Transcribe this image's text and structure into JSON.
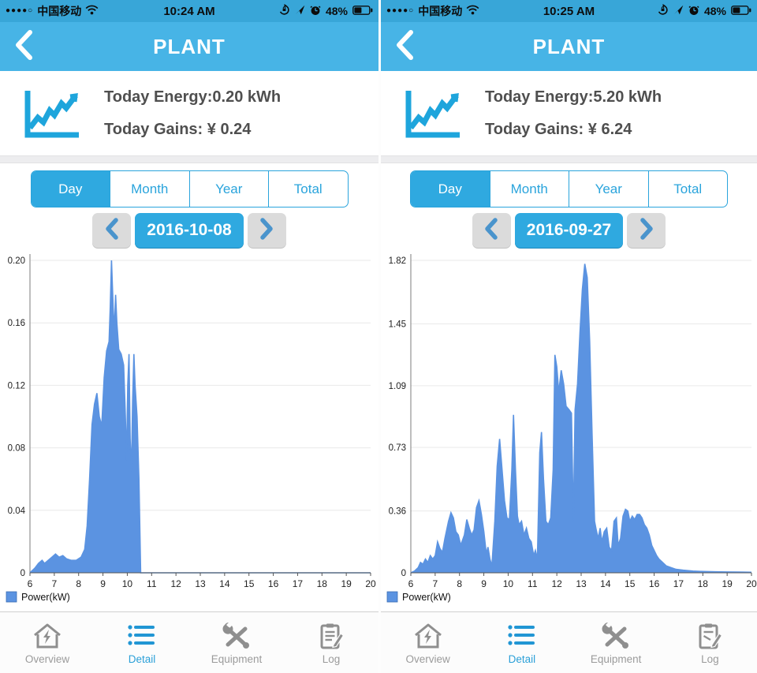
{
  "colors": {
    "status_bar_blue": "#38a6d8",
    "header_blue": "#47b4e6",
    "tab_border_blue": "#2aa4dc",
    "active_blue": "#2fa9e0",
    "chart_fill_blue": "#5b93e1",
    "nav_active_blue": "#2ba0d8",
    "nav_inactive_gray": "#8f8f8f",
    "summary_text_gray": "#4f4f4f",
    "grid_gray": "#e9e9e9"
  },
  "icons": {
    "back": "chevron-left",
    "signal": "cell-dots",
    "wifi": "wifi-arcs",
    "orientation_lock": "lock-circle",
    "location": "location-arrow",
    "alarm": "alarm-clock",
    "battery": "battery-half",
    "summary": "line-chart",
    "prev": "chevron-left",
    "next": "chevron-right",
    "overview": "house-energy",
    "detail": "bullet-list",
    "equipment": "crossed-tools",
    "log": "clipboard-pencil"
  },
  "tabs": {
    "items": [
      {
        "label": "Day",
        "active": true
      },
      {
        "label": "Month",
        "active": false
      },
      {
        "label": "Year",
        "active": false
      },
      {
        "label": "Total",
        "active": false
      }
    ]
  },
  "bottom_nav": {
    "items": [
      {
        "label": "Overview",
        "icon": "house-energy-icon",
        "active": false
      },
      {
        "label": "Detail",
        "icon": "bullet-list-icon",
        "active": true
      },
      {
        "label": "Equipment",
        "icon": "crossed-tools-icon",
        "active": false
      },
      {
        "label": "Log",
        "icon": "clipboard-pencil-icon",
        "active": false
      }
    ]
  },
  "panels": [
    {
      "status_bar": {
        "signal_dots": "●●●●○",
        "carrier": "中国移动",
        "time": "10:24 AM",
        "battery_percent": "48%"
      },
      "header": {
        "title": "PLANT"
      },
      "summary": {
        "energy": "Today Energy:0.20 kWh",
        "gains": "Today Gains: ¥ 0.24"
      },
      "date": "2016-10-08"
    },
    {
      "status_bar": {
        "signal_dots": "●●●●○",
        "carrier": "中国移动",
        "time": "10:25 AM",
        "battery_percent": "48%"
      },
      "header": {
        "title": "PLANT"
      },
      "summary": {
        "energy": "Today Energy:5.20 kWh",
        "gains": "Today Gains: ¥ 6.24"
      },
      "date": "2016-09-27"
    }
  ],
  "chart_data": [
    {
      "type": "area",
      "title": "",
      "xlabel": "",
      "ylabel": "Power(kW)",
      "date": "2016-10-08",
      "xlim": [
        6,
        20
      ],
      "ymax": 0.2,
      "grid": "horizontal",
      "legend_position": "bottom-left",
      "x_ticks": [
        6,
        7,
        8,
        9,
        10,
        11,
        12,
        13,
        14,
        15,
        16,
        17,
        18,
        19,
        20
      ],
      "y_ticks": [
        {
          "v": 0.2,
          "label": "0.20"
        },
        {
          "v": 0.16,
          "label": "0.16"
        },
        {
          "v": 0.12,
          "label": "0.12"
        },
        {
          "v": 0.08,
          "label": "0.08"
        },
        {
          "v": 0.04,
          "label": "0.04"
        },
        {
          "v": 0,
          "label": "0"
        }
      ],
      "series": [
        {
          "name": "Power(kW)",
          "color": "#5b93e1",
          "points": [
            [
              6,
              0
            ],
            [
              6.2,
              0.003
            ],
            [
              6.35,
              0.006
            ],
            [
              6.5,
              0.008
            ],
            [
              6.6,
              0.006
            ],
            [
              6.75,
              0.008
            ],
            [
              6.9,
              0.01
            ],
            [
              7.05,
              0.012
            ],
            [
              7.2,
              0.01
            ],
            [
              7.35,
              0.011
            ],
            [
              7.5,
              0.009
            ],
            [
              7.7,
              0.008
            ],
            [
              7.9,
              0.008
            ],
            [
              8.1,
              0.01
            ],
            [
              8.25,
              0.015
            ],
            [
              8.35,
              0.03
            ],
            [
              8.45,
              0.06
            ],
            [
              8.55,
              0.095
            ],
            [
              8.65,
              0.108
            ],
            [
              8.75,
              0.115
            ],
            [
              8.85,
              0.1
            ],
            [
              8.95,
              0.094
            ],
            [
              9.05,
              0.125
            ],
            [
              9.15,
              0.142
            ],
            [
              9.25,
              0.148
            ],
            [
              9.3,
              0.17
            ],
            [
              9.35,
              0.2
            ],
            [
              9.42,
              0.17
            ],
            [
              9.47,
              0.155
            ],
            [
              9.52,
              0.178
            ],
            [
              9.57,
              0.16
            ],
            [
              9.65,
              0.143
            ],
            [
              9.75,
              0.14
            ],
            [
              9.85,
              0.133
            ],
            [
              9.92,
              0.1
            ],
            [
              9.97,
              0.072
            ],
            [
              10.02,
              0.12
            ],
            [
              10.07,
              0.14
            ],
            [
              10.12,
              0.085
            ],
            [
              10.17,
              0.065
            ],
            [
              10.22,
              0.11
            ],
            [
              10.27,
              0.14
            ],
            [
              10.32,
              0.12
            ],
            [
              10.4,
              0.1
            ],
            [
              10.48,
              0.06
            ],
            [
              10.55,
              0
            ],
            [
              11,
              0
            ],
            [
              12,
              0
            ],
            [
              13,
              0
            ],
            [
              14,
              0
            ],
            [
              15,
              0
            ],
            [
              16,
              0
            ],
            [
              17,
              0
            ],
            [
              18,
              0
            ],
            [
              19,
              0
            ],
            [
              20,
              0
            ]
          ]
        }
      ]
    },
    {
      "type": "area",
      "title": "",
      "xlabel": "",
      "ylabel": "Power(kW)",
      "date": "2016-09-27",
      "xlim": [
        6,
        20
      ],
      "ymax": 1.82,
      "grid": "horizontal",
      "legend_position": "bottom-left",
      "x_ticks": [
        6,
        7,
        8,
        9,
        10,
        11,
        12,
        13,
        14,
        15,
        16,
        17,
        18,
        19,
        20
      ],
      "y_ticks": [
        {
          "v": 1.82,
          "label": "1.82"
        },
        {
          "v": 1.45,
          "label": "1.45"
        },
        {
          "v": 1.09,
          "label": "1.09"
        },
        {
          "v": 0.73,
          "label": "0.73"
        },
        {
          "v": 0.36,
          "label": "0.36"
        },
        {
          "v": 0,
          "label": "0"
        }
      ],
      "series": [
        {
          "name": "Power(kW)",
          "color": "#5b93e1",
          "points": [
            [
              6,
              0
            ],
            [
              6.15,
              0.01
            ],
            [
              6.3,
              0.03
            ],
            [
              6.4,
              0.06
            ],
            [
              6.5,
              0.05
            ],
            [
              6.6,
              0.08
            ],
            [
              6.7,
              0.06
            ],
            [
              6.8,
              0.1
            ],
            [
              6.9,
              0.08
            ],
            [
              7.0,
              0.1
            ],
            [
              7.1,
              0.18
            ],
            [
              7.2,
              0.14
            ],
            [
              7.3,
              0.12
            ],
            [
              7.4,
              0.2
            ],
            [
              7.55,
              0.3
            ],
            [
              7.65,
              0.35
            ],
            [
              7.75,
              0.32
            ],
            [
              7.85,
              0.24
            ],
            [
              7.95,
              0.22
            ],
            [
              8.05,
              0.16
            ],
            [
              8.2,
              0.22
            ],
            [
              8.3,
              0.31
            ],
            [
              8.4,
              0.26
            ],
            [
              8.5,
              0.22
            ],
            [
              8.6,
              0.25
            ],
            [
              8.7,
              0.38
            ],
            [
              8.8,
              0.42
            ],
            [
              8.9,
              0.34
            ],
            [
              9.0,
              0.24
            ],
            [
              9.1,
              0.11
            ],
            [
              9.17,
              0.15
            ],
            [
              9.25,
              0.08
            ],
            [
              9.33,
              0.04
            ],
            [
              9.45,
              0.3
            ],
            [
              9.55,
              0.62
            ],
            [
              9.65,
              0.78
            ],
            [
              9.75,
              0.6
            ],
            [
              9.85,
              0.42
            ],
            [
              9.95,
              0.32
            ],
            [
              10.05,
              0.31
            ],
            [
              10.15,
              0.6
            ],
            [
              10.22,
              0.92
            ],
            [
              10.3,
              0.6
            ],
            [
              10.38,
              0.33
            ],
            [
              10.45,
              0.28
            ],
            [
              10.55,
              0.3
            ],
            [
              10.65,
              0.22
            ],
            [
              10.75,
              0.26
            ],
            [
              10.85,
              0.2
            ],
            [
              10.95,
              0.18
            ],
            [
              11.05,
              0.1
            ],
            [
              11.12,
              0.13
            ],
            [
              11.2,
              0.08
            ],
            [
              11.3,
              0.7
            ],
            [
              11.37,
              0.82
            ],
            [
              11.45,
              0.55
            ],
            [
              11.55,
              0.3
            ],
            [
              11.65,
              0.28
            ],
            [
              11.75,
              0.32
            ],
            [
              11.85,
              0.6
            ],
            [
              11.92,
              1.27
            ],
            [
              12.0,
              1.2
            ],
            [
              12.08,
              1.05
            ],
            [
              12.18,
              1.18
            ],
            [
              12.28,
              1.1
            ],
            [
              12.38,
              0.97
            ],
            [
              12.5,
              0.95
            ],
            [
              12.6,
              0.93
            ],
            [
              12.68,
              0.3
            ],
            [
              12.75,
              0.95
            ],
            [
              12.85,
              1.1
            ],
            [
              12.95,
              1.4
            ],
            [
              13.05,
              1.65
            ],
            [
              13.15,
              1.8
            ],
            [
              13.25,
              1.72
            ],
            [
              13.35,
              1.35
            ],
            [
              13.45,
              0.8
            ],
            [
              13.55,
              0.3
            ],
            [
              13.62,
              0.25
            ],
            [
              13.7,
              0.2
            ],
            [
              13.78,
              0.26
            ],
            [
              13.85,
              0.18
            ],
            [
              13.95,
              0.24
            ],
            [
              14.05,
              0.26
            ],
            [
              14.15,
              0.15
            ],
            [
              14.25,
              0.13
            ],
            [
              14.35,
              0.3
            ],
            [
              14.45,
              0.32
            ],
            [
              14.52,
              0.16
            ],
            [
              14.62,
              0.2
            ],
            [
              14.72,
              0.33
            ],
            [
              14.82,
              0.37
            ],
            [
              14.92,
              0.36
            ],
            [
              15.0,
              0.3
            ],
            [
              15.1,
              0.33
            ],
            [
              15.2,
              0.31
            ],
            [
              15.3,
              0.34
            ],
            [
              15.4,
              0.34
            ],
            [
              15.5,
              0.32
            ],
            [
              15.6,
              0.28
            ],
            [
              15.7,
              0.26
            ],
            [
              15.8,
              0.22
            ],
            [
              15.9,
              0.16
            ],
            [
              16.0,
              0.13
            ],
            [
              16.1,
              0.1
            ],
            [
              16.2,
              0.08
            ],
            [
              16.35,
              0.06
            ],
            [
              16.5,
              0.04
            ],
            [
              16.7,
              0.03
            ],
            [
              16.9,
              0.02
            ],
            [
              17.2,
              0.015
            ],
            [
              17.6,
              0.01
            ],
            [
              18.0,
              0.008
            ],
            [
              18.5,
              0.006
            ],
            [
              19.0,
              0.005
            ],
            [
              19.5,
              0.004
            ],
            [
              20,
              0.003
            ]
          ]
        }
      ]
    }
  ]
}
